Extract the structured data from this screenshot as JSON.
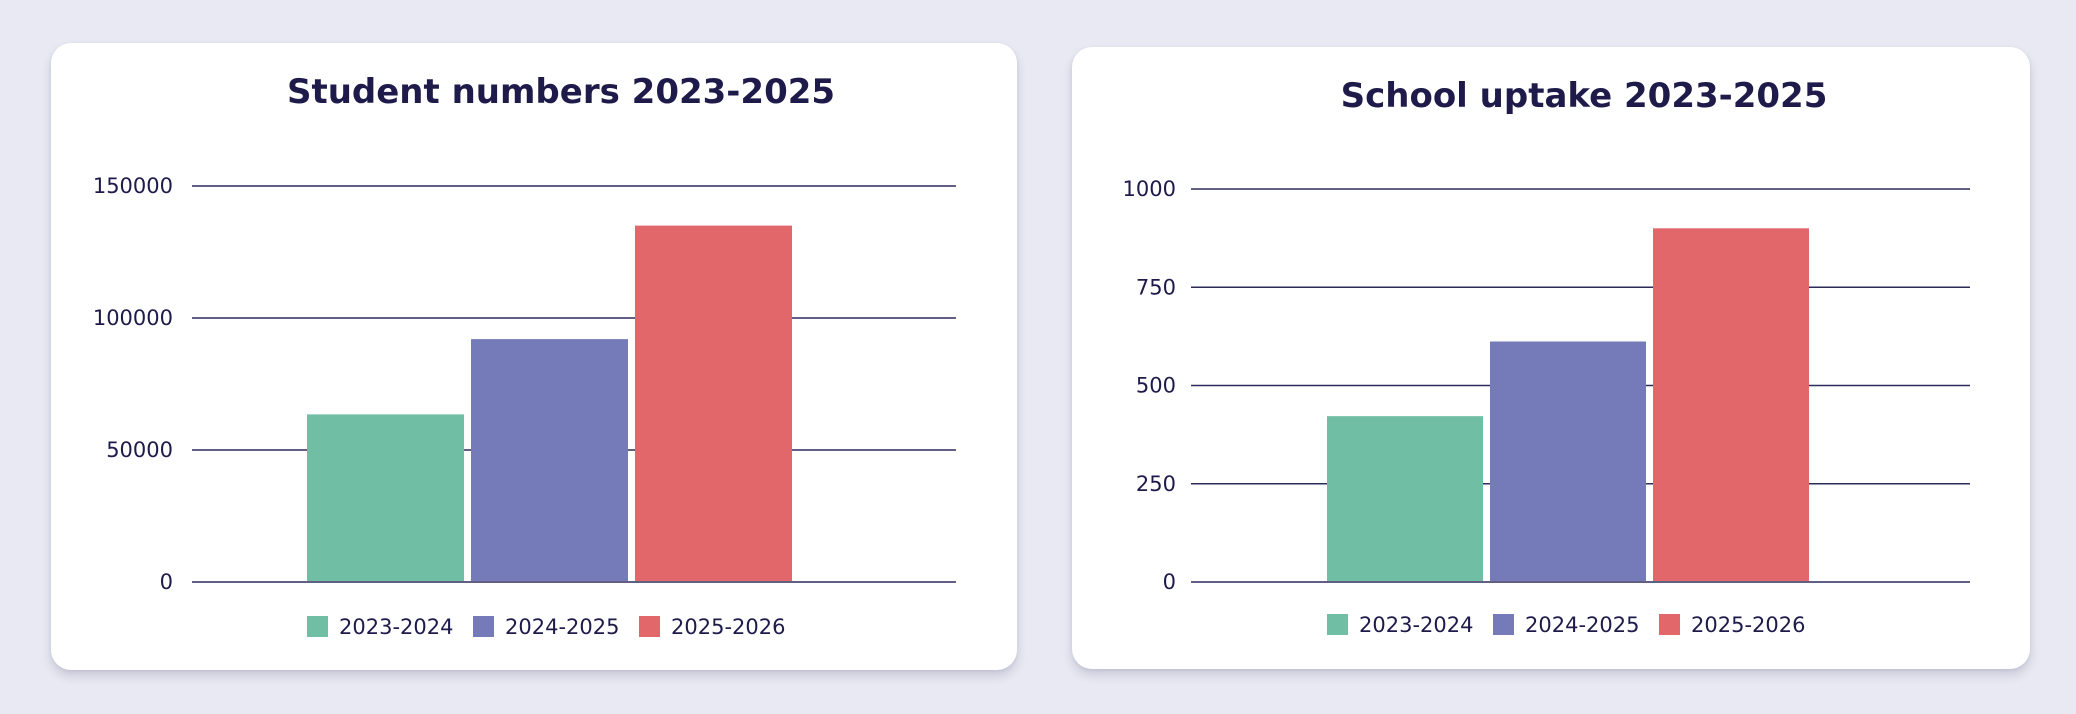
{
  "colors": {
    "text": "#1e1b4b",
    "grid": "#2d2b5a",
    "card": "#ffffff",
    "background": "#e9e9f3"
  },
  "chart_data": [
    {
      "type": "bar",
      "title": "Student numbers 2023-2025",
      "xlabel": "",
      "ylabel": "",
      "ylim": [
        0,
        150000
      ],
      "yticks": [
        0,
        50000,
        100000,
        150000
      ],
      "grid": true,
      "legend_position": "bottom",
      "series": [
        {
          "name": "2023-2024",
          "color": "#70bea3",
          "values": [
            63500
          ]
        },
        {
          "name": "2024-2025",
          "color": "#747bb8",
          "values": [
            92000
          ]
        },
        {
          "name": "2025-2026",
          "color": "#e1676b",
          "values": [
            135000
          ]
        }
      ]
    },
    {
      "type": "bar",
      "title": "School uptake 2023-2025",
      "xlabel": "",
      "ylabel": "",
      "ylim": [
        0,
        1000
      ],
      "yticks": [
        0,
        250,
        500,
        750,
        1000
      ],
      "grid": true,
      "legend_position": "bottom",
      "series": [
        {
          "name": "2023-2024",
          "color": "#70bea3",
          "values": [
            422
          ]
        },
        {
          "name": "2024-2025",
          "color": "#747bb8",
          "values": [
            612
          ]
        },
        {
          "name": "2025-2026",
          "color": "#e1676b",
          "values": [
            900
          ]
        }
      ]
    }
  ]
}
